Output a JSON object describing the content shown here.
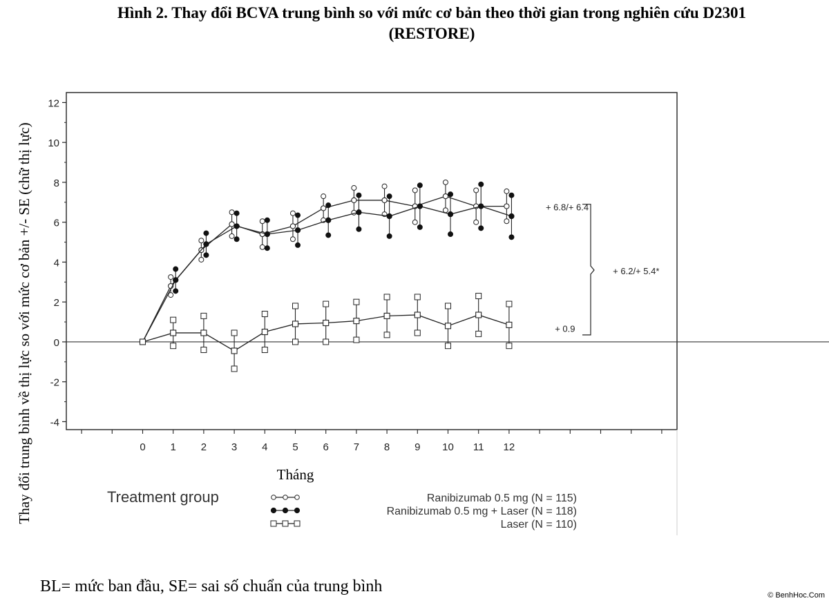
{
  "title_line1": "Hình 2.  Thay đổi BCVA trung bình so với mức cơ bản theo thời gian trong nghiên cứu D2301",
  "title_line2": "(RESTORE)",
  "footnote": "BL= mức ban đầu, SE= sai số chuẩn của trung bình",
  "watermark": "© BenhHoc.Com",
  "chart_data": {
    "type": "line",
    "xlabel": "Tháng",
    "ylabel": "Thay đổi trung bình về thị lực so với mức cơ bản +/- SE (chữ thị lực)",
    "x": [
      0,
      1,
      2,
      3,
      4,
      5,
      6,
      7,
      8,
      9,
      10,
      11,
      12
    ],
    "xlim": [
      -2.5,
      17.5
    ],
    "ylim": [
      -4.4,
      12.5
    ],
    "yticks": [
      -4,
      -2,
      0,
      2,
      4,
      6,
      8,
      10,
      12
    ],
    "grid": false,
    "reference_line_y": 0,
    "legend_title": "Treatment group",
    "legend_position": "bottom",
    "series": [
      {
        "name": "Ranibizumab 0.5 mg (N = 115)",
        "marker": "open-circle",
        "values": [
          0,
          2.8,
          4.6,
          5.9,
          5.4,
          5.8,
          6.7,
          7.1,
          7.1,
          6.8,
          7.3,
          6.8,
          6.8
        ],
        "se": [
          0,
          0.45,
          0.48,
          0.6,
          0.65,
          0.65,
          0.6,
          0.62,
          0.7,
          0.8,
          0.7,
          0.8,
          0.75
        ]
      },
      {
        "name": "Ranibizumab 0.5 mg + Laser (N = 118)",
        "marker": "filled-circle",
        "values": [
          0,
          3.1,
          4.9,
          5.8,
          5.4,
          5.6,
          6.1,
          6.5,
          6.3,
          6.8,
          6.4,
          6.8,
          6.3
        ],
        "se": [
          0,
          0.55,
          0.55,
          0.65,
          0.7,
          0.75,
          0.75,
          0.85,
          1.0,
          1.05,
          1.0,
          1.1,
          1.05
        ]
      },
      {
        "name": "Laser (N = 110)",
        "marker": "open-square",
        "values": [
          0,
          0.45,
          0.45,
          -0.45,
          0.5,
          0.9,
          0.95,
          1.05,
          1.3,
          1.35,
          0.8,
          1.35,
          0.85
        ],
        "se": [
          0,
          0.65,
          0.85,
          0.9,
          0.9,
          0.9,
          0.95,
          0.95,
          0.95,
          0.9,
          1.0,
          0.95,
          1.05
        ]
      }
    ],
    "annotations": [
      {
        "text": "+ 6.8/+ 6.4",
        "x": 13.2,
        "y": 6.6
      },
      {
        "text": "+ 6.2/+ 5.4*",
        "x": 15.4,
        "y": 3.4
      },
      {
        "text": "+ 0.9",
        "x": 13.5,
        "y": 0.5
      }
    ]
  }
}
